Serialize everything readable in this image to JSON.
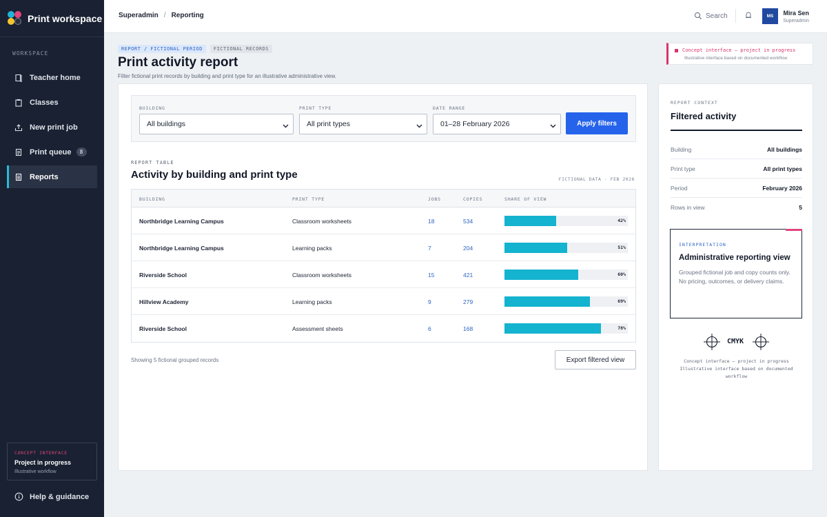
{
  "app": {
    "title": "Print workspace"
  },
  "sidebar": {
    "section": "WORKSPACE",
    "items": [
      {
        "label": "Teacher home",
        "icon": "home-book-icon"
      },
      {
        "label": "Classes",
        "icon": "clipboard-icon"
      },
      {
        "label": "New print job",
        "icon": "upload-icon"
      },
      {
        "label": "Print queue",
        "icon": "document-icon",
        "badge": "8"
      },
      {
        "label": "Reports",
        "icon": "report-icon",
        "active": true
      }
    ],
    "concept": {
      "tag": "CONCEPT INTERFACE",
      "title": "Project in progress",
      "sub": "Illustrative workflow"
    },
    "help": "Help & guidance"
  },
  "topbar": {
    "breadcrumb": [
      "Superadmin",
      "Reporting"
    ],
    "search": "Search",
    "user": {
      "initials": "MS",
      "name": "Mira Sen",
      "role": "Superadmin"
    }
  },
  "header": {
    "chips": [
      "REPORT / FICTIONAL PERIOD",
      "FICTIONAL RECORDS"
    ],
    "title": "Print activity report",
    "subtitle": "Filter fictional print records by building and print type for an illustrative administrative view.",
    "notice": {
      "line1": "Concept interface – project in progress",
      "line2": "Illustrative interface based on documented workflow"
    }
  },
  "filters": {
    "building": {
      "label": "BUILDING",
      "value": "All buildings"
    },
    "print_type": {
      "label": "PRINT TYPE",
      "value": "All print types"
    },
    "date_range": {
      "label": "DATE RANGE",
      "value": "01–28 February 2026"
    },
    "apply": "Apply filters"
  },
  "report": {
    "label": "REPORT TABLE",
    "title": "Activity by building and print type",
    "meta": "FICTIONAL DATA · FEB 2026",
    "columns": [
      "BUILDING",
      "PRINT TYPE",
      "JOBS",
      "COPIES",
      "SHARE OF VIEW"
    ],
    "rows": [
      {
        "building": "Northbridge Learning Campus",
        "type": "Classroom worksheets",
        "jobs": "18",
        "copies": "534",
        "share": 42,
        "share_label": "42%"
      },
      {
        "building": "Northbridge Learning Campus",
        "type": "Learning packs",
        "jobs": "7",
        "copies": "204",
        "share": 51,
        "share_label": "51%"
      },
      {
        "building": "Riverside School",
        "type": "Classroom worksheets",
        "jobs": "15",
        "copies": "421",
        "share": 60,
        "share_label": "60%"
      },
      {
        "building": "Hillview Academy",
        "type": "Learning packs",
        "jobs": "9",
        "copies": "279",
        "share": 69,
        "share_label": "69%"
      },
      {
        "building": "Riverside School",
        "type": "Assessment sheets",
        "jobs": "6",
        "copies": "168",
        "share": 78,
        "share_label": "78%"
      }
    ],
    "showing": "Showing 5 fictional grouped records",
    "export": "Export filtered view"
  },
  "context": {
    "label": "REPORT CONTEXT",
    "title": "Filtered activity",
    "rows": [
      {
        "k": "Building",
        "v": "All buildings"
      },
      {
        "k": "Print type",
        "v": "All print types"
      },
      {
        "k": "Period",
        "v": "February 2026"
      },
      {
        "k": "Rows in view",
        "v": "5"
      }
    ],
    "interp": {
      "tag": "INTERPRETATION",
      "title": "Administrative reporting view",
      "desc": "Grouped fictional job and copy counts only. No pricing, outcomes, or delivery claims."
    },
    "cmyk": "CMYK",
    "foot1": "Concept interface – project in progress",
    "foot2": "Illustrative interface based on documented",
    "foot3": "workflow"
  },
  "colors": {
    "sidebar": "#192132",
    "accent": "#2563eb",
    "bar": "#14b3cf",
    "concept": "#d9336b"
  }
}
